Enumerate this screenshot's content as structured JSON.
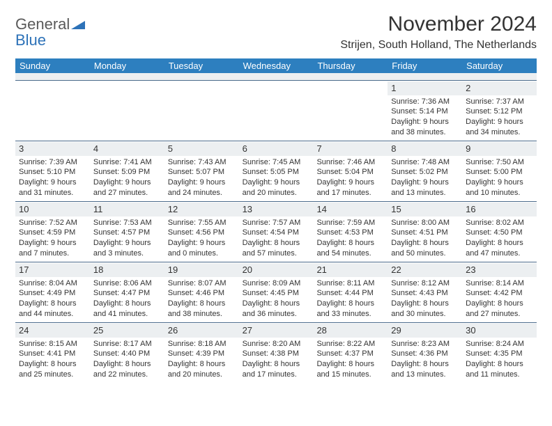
{
  "brand": {
    "part1": "General",
    "part2": "Blue"
  },
  "title": "November 2024",
  "location": "Strijen, South Holland, The Netherlands",
  "colors": {
    "header_bar": "#2d7fbf",
    "band": "#eceff1",
    "rule": "#4a6a8a",
    "text": "#333333",
    "logo_gray": "#5a5a5a",
    "logo_blue": "#2d72b8"
  },
  "day_names": [
    "Sunday",
    "Monday",
    "Tuesday",
    "Wednesday",
    "Thursday",
    "Friday",
    "Saturday"
  ],
  "weeks": [
    [
      {
        "n": "",
        "sr": "",
        "ss": "",
        "dl": ""
      },
      {
        "n": "",
        "sr": "",
        "ss": "",
        "dl": ""
      },
      {
        "n": "",
        "sr": "",
        "ss": "",
        "dl": ""
      },
      {
        "n": "",
        "sr": "",
        "ss": "",
        "dl": ""
      },
      {
        "n": "",
        "sr": "",
        "ss": "",
        "dl": ""
      },
      {
        "n": "1",
        "sr": "Sunrise: 7:36 AM",
        "ss": "Sunset: 5:14 PM",
        "dl": "Daylight: 9 hours and 38 minutes."
      },
      {
        "n": "2",
        "sr": "Sunrise: 7:37 AM",
        "ss": "Sunset: 5:12 PM",
        "dl": "Daylight: 9 hours and 34 minutes."
      }
    ],
    [
      {
        "n": "3",
        "sr": "Sunrise: 7:39 AM",
        "ss": "Sunset: 5:10 PM",
        "dl": "Daylight: 9 hours and 31 minutes."
      },
      {
        "n": "4",
        "sr": "Sunrise: 7:41 AM",
        "ss": "Sunset: 5:09 PM",
        "dl": "Daylight: 9 hours and 27 minutes."
      },
      {
        "n": "5",
        "sr": "Sunrise: 7:43 AM",
        "ss": "Sunset: 5:07 PM",
        "dl": "Daylight: 9 hours and 24 minutes."
      },
      {
        "n": "6",
        "sr": "Sunrise: 7:45 AM",
        "ss": "Sunset: 5:05 PM",
        "dl": "Daylight: 9 hours and 20 minutes."
      },
      {
        "n": "7",
        "sr": "Sunrise: 7:46 AM",
        "ss": "Sunset: 5:04 PM",
        "dl": "Daylight: 9 hours and 17 minutes."
      },
      {
        "n": "8",
        "sr": "Sunrise: 7:48 AM",
        "ss": "Sunset: 5:02 PM",
        "dl": "Daylight: 9 hours and 13 minutes."
      },
      {
        "n": "9",
        "sr": "Sunrise: 7:50 AM",
        "ss": "Sunset: 5:00 PM",
        "dl": "Daylight: 9 hours and 10 minutes."
      }
    ],
    [
      {
        "n": "10",
        "sr": "Sunrise: 7:52 AM",
        "ss": "Sunset: 4:59 PM",
        "dl": "Daylight: 9 hours and 7 minutes."
      },
      {
        "n": "11",
        "sr": "Sunrise: 7:53 AM",
        "ss": "Sunset: 4:57 PM",
        "dl": "Daylight: 9 hours and 3 minutes."
      },
      {
        "n": "12",
        "sr": "Sunrise: 7:55 AM",
        "ss": "Sunset: 4:56 PM",
        "dl": "Daylight: 9 hours and 0 minutes."
      },
      {
        "n": "13",
        "sr": "Sunrise: 7:57 AM",
        "ss": "Sunset: 4:54 PM",
        "dl": "Daylight: 8 hours and 57 minutes."
      },
      {
        "n": "14",
        "sr": "Sunrise: 7:59 AM",
        "ss": "Sunset: 4:53 PM",
        "dl": "Daylight: 8 hours and 54 minutes."
      },
      {
        "n": "15",
        "sr": "Sunrise: 8:00 AM",
        "ss": "Sunset: 4:51 PM",
        "dl": "Daylight: 8 hours and 50 minutes."
      },
      {
        "n": "16",
        "sr": "Sunrise: 8:02 AM",
        "ss": "Sunset: 4:50 PM",
        "dl": "Daylight: 8 hours and 47 minutes."
      }
    ],
    [
      {
        "n": "17",
        "sr": "Sunrise: 8:04 AM",
        "ss": "Sunset: 4:49 PM",
        "dl": "Daylight: 8 hours and 44 minutes."
      },
      {
        "n": "18",
        "sr": "Sunrise: 8:06 AM",
        "ss": "Sunset: 4:47 PM",
        "dl": "Daylight: 8 hours and 41 minutes."
      },
      {
        "n": "19",
        "sr": "Sunrise: 8:07 AM",
        "ss": "Sunset: 4:46 PM",
        "dl": "Daylight: 8 hours and 38 minutes."
      },
      {
        "n": "20",
        "sr": "Sunrise: 8:09 AM",
        "ss": "Sunset: 4:45 PM",
        "dl": "Daylight: 8 hours and 36 minutes."
      },
      {
        "n": "21",
        "sr": "Sunrise: 8:11 AM",
        "ss": "Sunset: 4:44 PM",
        "dl": "Daylight: 8 hours and 33 minutes."
      },
      {
        "n": "22",
        "sr": "Sunrise: 8:12 AM",
        "ss": "Sunset: 4:43 PM",
        "dl": "Daylight: 8 hours and 30 minutes."
      },
      {
        "n": "23",
        "sr": "Sunrise: 8:14 AM",
        "ss": "Sunset: 4:42 PM",
        "dl": "Daylight: 8 hours and 27 minutes."
      }
    ],
    [
      {
        "n": "24",
        "sr": "Sunrise: 8:15 AM",
        "ss": "Sunset: 4:41 PM",
        "dl": "Daylight: 8 hours and 25 minutes."
      },
      {
        "n": "25",
        "sr": "Sunrise: 8:17 AM",
        "ss": "Sunset: 4:40 PM",
        "dl": "Daylight: 8 hours and 22 minutes."
      },
      {
        "n": "26",
        "sr": "Sunrise: 8:18 AM",
        "ss": "Sunset: 4:39 PM",
        "dl": "Daylight: 8 hours and 20 minutes."
      },
      {
        "n": "27",
        "sr": "Sunrise: 8:20 AM",
        "ss": "Sunset: 4:38 PM",
        "dl": "Daylight: 8 hours and 17 minutes."
      },
      {
        "n": "28",
        "sr": "Sunrise: 8:22 AM",
        "ss": "Sunset: 4:37 PM",
        "dl": "Daylight: 8 hours and 15 minutes."
      },
      {
        "n": "29",
        "sr": "Sunrise: 8:23 AM",
        "ss": "Sunset: 4:36 PM",
        "dl": "Daylight: 8 hours and 13 minutes."
      },
      {
        "n": "30",
        "sr": "Sunrise: 8:24 AM",
        "ss": "Sunset: 4:35 PM",
        "dl": "Daylight: 8 hours and 11 minutes."
      }
    ]
  ]
}
